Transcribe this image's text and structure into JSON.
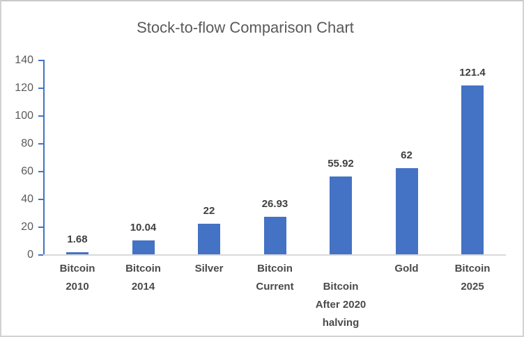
{
  "chart_data": {
    "type": "bar",
    "title": "Stock-to-flow Comparison Chart",
    "categories": [
      "Bitcoin 2010",
      "Bitcoin 2014",
      "Silver",
      "Bitcoin Current",
      "Bitcoin After 2020 halving",
      "Gold",
      "Bitcoin 2025"
    ],
    "category_label_lines": [
      [
        "Bitcoin",
        "2010"
      ],
      [
        "Bitcoin",
        "2014"
      ],
      [
        "Silver"
      ],
      [
        "Bitcoin",
        "Current"
      ],
      [
        "Bitcoin",
        "After 2020",
        "halving"
      ],
      [
        "Gold"
      ],
      [
        "Bitcoin",
        "2025"
      ]
    ],
    "values": [
      1.68,
      10.04,
      22,
      26.93,
      55.92,
      62,
      121.4
    ],
    "data_labels": [
      "1.68",
      "10.04",
      "22",
      "26.93",
      "55.92",
      "62",
      "121.4"
    ],
    "xlabel": "",
    "ylabel": "",
    "ylim": [
      0,
      140
    ],
    "yticks": [
      0,
      20,
      40,
      60,
      80,
      100,
      120,
      140
    ],
    "grid": false,
    "legend": "none",
    "data_labels_position": "outside-end",
    "staggered_category_index": 4,
    "colors": {
      "bar": "#4472C4",
      "y_axis_line": "#4472C4",
      "x_axis_line": "#D9D9D9",
      "title_text": "#595959",
      "ytick_text": "#595959",
      "category_text": "#4A4A4A",
      "data_label_text": "#404040"
    }
  }
}
